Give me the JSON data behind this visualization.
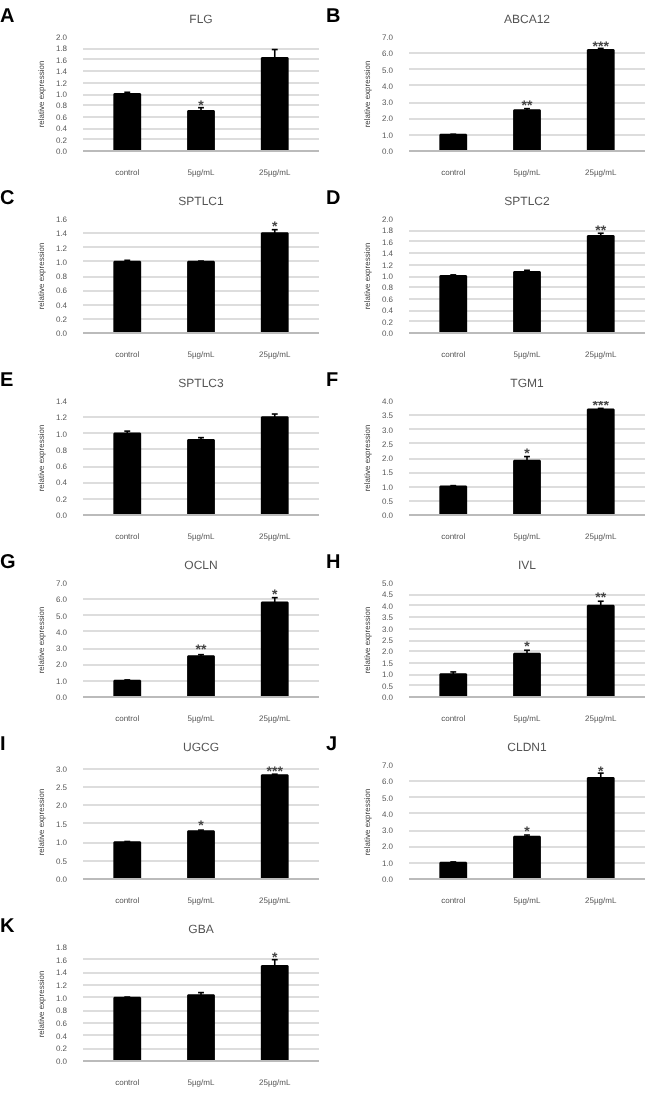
{
  "chart_data": [
    {
      "type": "bar",
      "title": "FLG",
      "ylabel": "relative expression",
      "categories": [
        "control",
        "5µg/mL",
        "25µg/mL"
      ],
      "values": [
        1.0,
        0.7,
        1.63
      ],
      "errors": [
        0.03,
        0.06,
        0.15
      ],
      "color": "#000000",
      "ylim": [
        0,
        2.0
      ],
      "yticks": [
        {
          "value": 0,
          "label": "0.0"
        },
        0.2,
        0.4,
        0.6,
        0.8,
        {
          "value": 1,
          "label": "1.0"
        },
        1.2,
        1.4,
        1.6,
        1.8,
        {
          "value": 2,
          "label": "2.0"
        }
      ],
      "grid": "y",
      "annotations": [
        "A",
        {
          "text": "*",
          "x": "5µg/mL",
          "y": 0.78
        }
      ]
    },
    {
      "type": "bar",
      "title": "ABCA12",
      "ylabel": "relative expression",
      "categories": [
        "control",
        "5µg/mL",
        "25µg/mL"
      ],
      "values": [
        1.0,
        2.5,
        6.2
      ],
      "errors": [
        0.03,
        0.1,
        0.1
      ],
      "color": "#000000",
      "ylim": [
        0,
        7.0
      ],
      "yticks": [
        {
          "value": 0,
          "label": "0.0"
        },
        {
          "value": 1,
          "label": "1.0"
        },
        {
          "value": 2,
          "label": "2.0"
        },
        {
          "value": 3,
          "label": "3.0"
        },
        {
          "value": 4,
          "label": "4.0"
        },
        {
          "value": 5,
          "label": "5.0"
        },
        {
          "value": 6,
          "label": "6.0"
        },
        {
          "value": 7,
          "label": "7.0"
        }
      ],
      "grid": "y",
      "annotations": [
        "B",
        {
          "text": "**",
          "x": "5µg/mL",
          "y": 2.7
        },
        {
          "text": "***",
          "x": "25µg/mL",
          "y": 6.35
        }
      ]
    },
    {
      "type": "bar",
      "title": "SPTLC1",
      "ylabel": "relative expression",
      "categories": [
        "control",
        "5µg/mL",
        "25µg/mL"
      ],
      "values": [
        1.0,
        1.0,
        1.4
      ],
      "errors": [
        0.02,
        0.01,
        0.05
      ],
      "color": "#000000",
      "ylim": [
        0,
        1.6
      ],
      "yticks": [
        {
          "value": 0,
          "label": "0.0"
        },
        0.2,
        0.4,
        0.6,
        0.8,
        {
          "value": 1,
          "label": "1.0"
        },
        1.2,
        1.4,
        1.6
      ],
      "grid": "y",
      "annotations": [
        "C",
        {
          "text": "*",
          "x": "25µg/mL",
          "y": 1.47
        }
      ]
    },
    {
      "type": "bar",
      "title": "SPTLC2",
      "ylabel": "relative expression",
      "categories": [
        "control",
        "5µg/mL",
        "25µg/mL"
      ],
      "values": [
        1.0,
        1.07,
        1.7
      ],
      "errors": [
        0.02,
        0.03,
        0.05
      ],
      "color": "#000000",
      "ylim": [
        0,
        2.0
      ],
      "yticks": [
        {
          "value": 0,
          "label": "0.0"
        },
        0.2,
        0.4,
        0.6,
        0.8,
        {
          "value": 1,
          "label": "1.0"
        },
        1.2,
        1.4,
        1.6,
        1.8,
        {
          "value": 2,
          "label": "2.0"
        }
      ],
      "grid": "y",
      "annotations": [
        "D",
        {
          "text": "**",
          "x": "25µg/mL",
          "y": 1.78
        }
      ]
    },
    {
      "type": "bar",
      "title": "SPTLC3",
      "ylabel": "relative expression",
      "categories": [
        "control",
        "5µg/mL",
        "25µg/mL"
      ],
      "values": [
        1.0,
        0.92,
        1.2
      ],
      "errors": [
        0.03,
        0.03,
        0.04
      ],
      "color": "#000000",
      "ylim": [
        0,
        1.4
      ],
      "yticks": [
        {
          "value": 0,
          "label": "0.0"
        },
        0.2,
        0.4,
        0.6,
        0.8,
        {
          "value": 1,
          "label": "1.0"
        },
        1.2,
        1.4
      ],
      "grid": "y",
      "annotations": [
        "E"
      ]
    },
    {
      "type": "bar",
      "title": "TGM1",
      "ylabel": "relative expression",
      "categories": [
        "control",
        "5µg/mL",
        "25µg/mL"
      ],
      "values": [
        1.0,
        1.9,
        3.7
      ],
      "errors": [
        0.03,
        0.15,
        0.04
      ],
      "color": "#000000",
      "ylim": [
        0,
        4.0
      ],
      "yticks": [
        {
          "value": 0,
          "label": "0.0"
        },
        0.5,
        {
          "value": 1,
          "label": "1.0"
        },
        1.5,
        {
          "value": 2,
          "label": "2.0"
        },
        2.5,
        {
          "value": 3,
          "label": "3.0"
        },
        3.5,
        {
          "value": 4,
          "label": "4.0"
        }
      ],
      "grid": "y",
      "annotations": [
        "F",
        {
          "text": "*",
          "x": "5µg/mL",
          "y": 2.1
        },
        {
          "text": "***",
          "x": "25µg/mL",
          "y": 3.79
        }
      ]
    },
    {
      "type": "bar",
      "title": "OCLN",
      "ylabel": "relative expression",
      "categories": [
        "control",
        "5µg/mL",
        "25µg/mL"
      ],
      "values": [
        1.0,
        2.5,
        5.8
      ],
      "errors": [
        0.05,
        0.1,
        0.3
      ],
      "color": "#000000",
      "ylim": [
        0,
        7.0
      ],
      "yticks": [
        {
          "value": 0,
          "label": "0.0"
        },
        {
          "value": 1,
          "label": "1.0"
        },
        {
          "value": 2,
          "label": "2.0"
        },
        {
          "value": 3,
          "label": "3.0"
        },
        {
          "value": 4,
          "label": "4.0"
        },
        {
          "value": 5,
          "label": "5.0"
        },
        {
          "value": 6,
          "label": "6.0"
        },
        {
          "value": 7,
          "label": "7.0"
        }
      ],
      "grid": "y",
      "annotations": [
        "G",
        {
          "text": "**",
          "x": "5µg/mL",
          "y": 2.8
        },
        {
          "text": "*",
          "x": "25µg/mL",
          "y": 6.2
        }
      ]
    },
    {
      "type": "bar",
      "title": "IVL",
      "ylabel": "relative expression",
      "categories": [
        "control",
        "5µg/mL",
        "25µg/mL"
      ],
      "values": [
        1.0,
        1.9,
        4.0
      ],
      "errors": [
        0.1,
        0.15,
        0.2
      ],
      "color": "#000000",
      "ylim": [
        0,
        5.0
      ],
      "yticks": [
        {
          "value": 0,
          "label": "0.0"
        },
        0.5,
        {
          "value": 1,
          "label": "1.0"
        },
        1.5,
        {
          "value": 2,
          "label": "2.0"
        },
        2.5,
        {
          "value": 3,
          "label": "3.0"
        },
        3.5,
        {
          "value": 4,
          "label": "4.0"
        },
        4.5,
        {
          "value": 5,
          "label": "5.0"
        }
      ],
      "grid": "y",
      "annotations": [
        "H",
        {
          "text": "*",
          "x": "5µg/mL",
          "y": 2.15
        },
        {
          "text": "**",
          "x": "25µg/mL",
          "y": 4.3
        }
      ]
    },
    {
      "type": "bar",
      "title": "UGCG",
      "ylabel": "relative expression",
      "categories": [
        "control",
        "5µg/mL",
        "25µg/mL"
      ],
      "values": [
        1.0,
        1.3,
        2.82
      ],
      "errors": [
        0.02,
        0.03,
        0.03
      ],
      "color": "#000000",
      "ylim": [
        0,
        3.1
      ],
      "yticks": [
        {
          "value": 0,
          "label": "0.0"
        },
        0.5,
        {
          "value": 1,
          "label": "1.0"
        },
        1.5,
        {
          "value": 2,
          "label": "2.0"
        },
        2.5,
        {
          "value": 3,
          "label": "3.0"
        }
      ],
      "grid": "y",
      "annotations": [
        "I",
        {
          "text": "*",
          "x": "5µg/mL",
          "y": 1.42
        },
        {
          "text": "***",
          "x": "25µg/mL",
          "y": 2.87
        }
      ]
    },
    {
      "type": "bar",
      "title": "CLDN1",
      "ylabel": "relative expression",
      "categories": [
        "control",
        "5µg/mL",
        "25µg/mL"
      ],
      "values": [
        1.0,
        2.6,
        6.2
      ],
      "errors": [
        0.05,
        0.1,
        0.3
      ],
      "color": "#000000",
      "ylim": [
        0,
        7.0
      ],
      "yticks": [
        {
          "value": 0,
          "label": "0.0"
        },
        {
          "value": 1,
          "label": "1.0"
        },
        {
          "value": 2,
          "label": "2.0"
        },
        {
          "value": 3,
          "label": "3.0"
        },
        {
          "value": 4,
          "label": "4.0"
        },
        {
          "value": 5,
          "label": "5.0"
        },
        {
          "value": 6,
          "label": "6.0"
        },
        {
          "value": 7,
          "label": "7.0"
        }
      ],
      "grid": "y",
      "annotations": [
        "J",
        {
          "text": "*",
          "x": "5µg/mL",
          "y": 2.8
        },
        {
          "text": "*",
          "x": "25µg/mL",
          "y": 6.52
        }
      ]
    },
    {
      "type": "bar",
      "title": "GBA",
      "ylabel": "relative expression",
      "categories": [
        "control",
        "5µg/mL",
        "25µg/mL"
      ],
      "values": [
        1.0,
        1.04,
        1.5
      ],
      "errors": [
        0.01,
        0.04,
        0.1
      ],
      "color": "#000000",
      "ylim": [
        0,
        1.8
      ],
      "yticks": [
        {
          "value": 0,
          "label": "0.0"
        },
        0.2,
        0.4,
        0.6,
        0.8,
        {
          "value": 1,
          "label": "1.0"
        },
        1.2,
        1.4,
        1.6,
        1.8
      ],
      "grid": "y",
      "annotations": [
        "K",
        {
          "text": "*",
          "x": "25µg/mL",
          "y": 1.61
        }
      ]
    }
  ]
}
